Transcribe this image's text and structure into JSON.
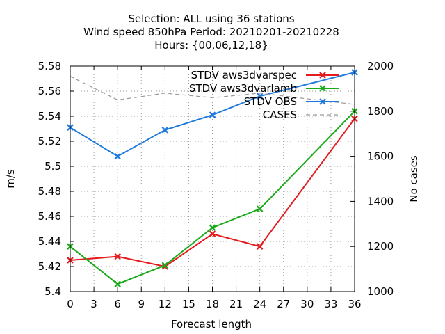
{
  "chart_data": {
    "type": "line",
    "title_lines": [
      "Selection: ALL using    36 stations",
      "Wind speed 850hPa   Period: 20210201-20210228",
      "Hours: {00,06,12,18}"
    ],
    "xlabel": "Forecast length",
    "ylabel": "m/s",
    "y2label": "No cases",
    "x": [
      0,
      6,
      12,
      18,
      24,
      36
    ],
    "xticks": [
      0,
      3,
      6,
      9,
      12,
      15,
      18,
      21,
      24,
      27,
      30,
      33,
      36
    ],
    "xlim": [
      0,
      36
    ],
    "ylim": [
      5.4,
      5.58
    ],
    "yticks": [
      "5.4",
      "5.42",
      "5.44",
      "5.46",
      "5.48",
      "5.5",
      "5.52",
      "5.54",
      "5.56",
      "5.58"
    ],
    "y2lim": [
      1000,
      2000
    ],
    "y2ticks": [
      "1000",
      "1200",
      "1400",
      "1600",
      "1800",
      "2000"
    ],
    "grid": true,
    "legend_position": "top-right",
    "series": [
      {
        "name": "STDV aws3dvarspec",
        "axis": "y",
        "color": "#e41a1c",
        "dash": false,
        "marker": "x",
        "values": [
          5.425,
          5.428,
          5.42,
          5.446,
          5.436,
          5.538
        ]
      },
      {
        "name": "STDV aws3dvarlamb",
        "axis": "y",
        "color": "#1aaa1a",
        "dash": false,
        "marker": "x",
        "values": [
          5.436,
          5.406,
          5.421,
          5.451,
          5.466,
          5.544
        ]
      },
      {
        "name": "STDV OBS",
        "axis": "y",
        "color": "#1f7ae0",
        "dash": false,
        "marker": "x",
        "values": [
          5.531,
          5.508,
          5.529,
          5.541,
          5.556,
          5.575
        ]
      },
      {
        "name": "CASES",
        "axis": "y2",
        "color": "#999999",
        "dash": true,
        "marker": "none",
        "values": [
          1955,
          1850,
          1880,
          1860,
          1880,
          1830
        ]
      }
    ]
  }
}
